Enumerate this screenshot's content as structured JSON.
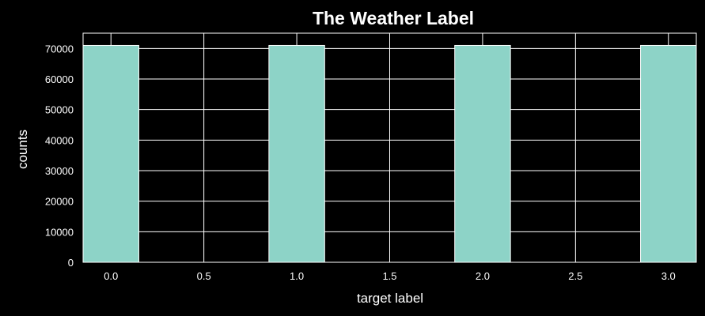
{
  "chart_data": {
    "type": "bar",
    "title": "The Weather Label",
    "xlabel": "target label",
    "ylabel": "counts",
    "x": [
      0.0,
      1.0,
      2.0,
      3.0
    ],
    "values": [
      71000,
      71000,
      71000,
      71000
    ],
    "bar_width": 0.3,
    "xlim": [
      -0.15,
      3.15
    ],
    "ylim": [
      0,
      75000
    ],
    "xticks": [
      0.0,
      0.5,
      1.0,
      1.5,
      2.0,
      2.5,
      3.0
    ],
    "xtick_labels": [
      "0.0",
      "0.5",
      "1.0",
      "1.5",
      "2.0",
      "2.5",
      "3.0"
    ],
    "yticks": [
      0,
      10000,
      20000,
      30000,
      40000,
      50000,
      60000,
      70000
    ],
    "ytick_labels": [
      "0",
      "10000",
      "20000",
      "30000",
      "40000",
      "50000",
      "60000",
      "70000"
    ],
    "grid": true,
    "colors": {
      "background": "#000000",
      "bar": "#8dd3c7",
      "grid": "#ffffff",
      "text": "#ffffff"
    }
  }
}
